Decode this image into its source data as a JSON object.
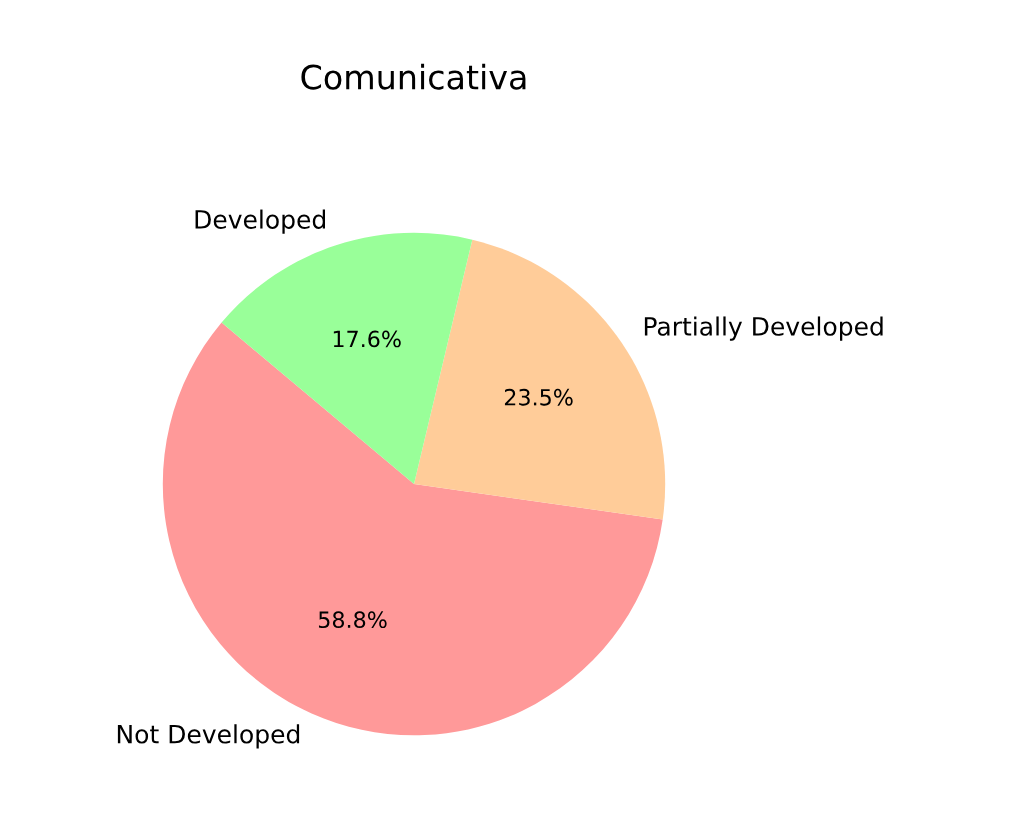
{
  "chart_data": {
    "type": "pie",
    "title": "Comunicativa",
    "categories": [
      "Not Developed",
      "Partially Developed",
      "Developed"
    ],
    "values": [
      58.8,
      23.5,
      17.6
    ],
    "colors": [
      "#ff9999",
      "#ffcc99",
      "#99ff99"
    ],
    "value_labels": [
      "58.8%",
      "23.5%",
      "17.6%"
    ]
  }
}
